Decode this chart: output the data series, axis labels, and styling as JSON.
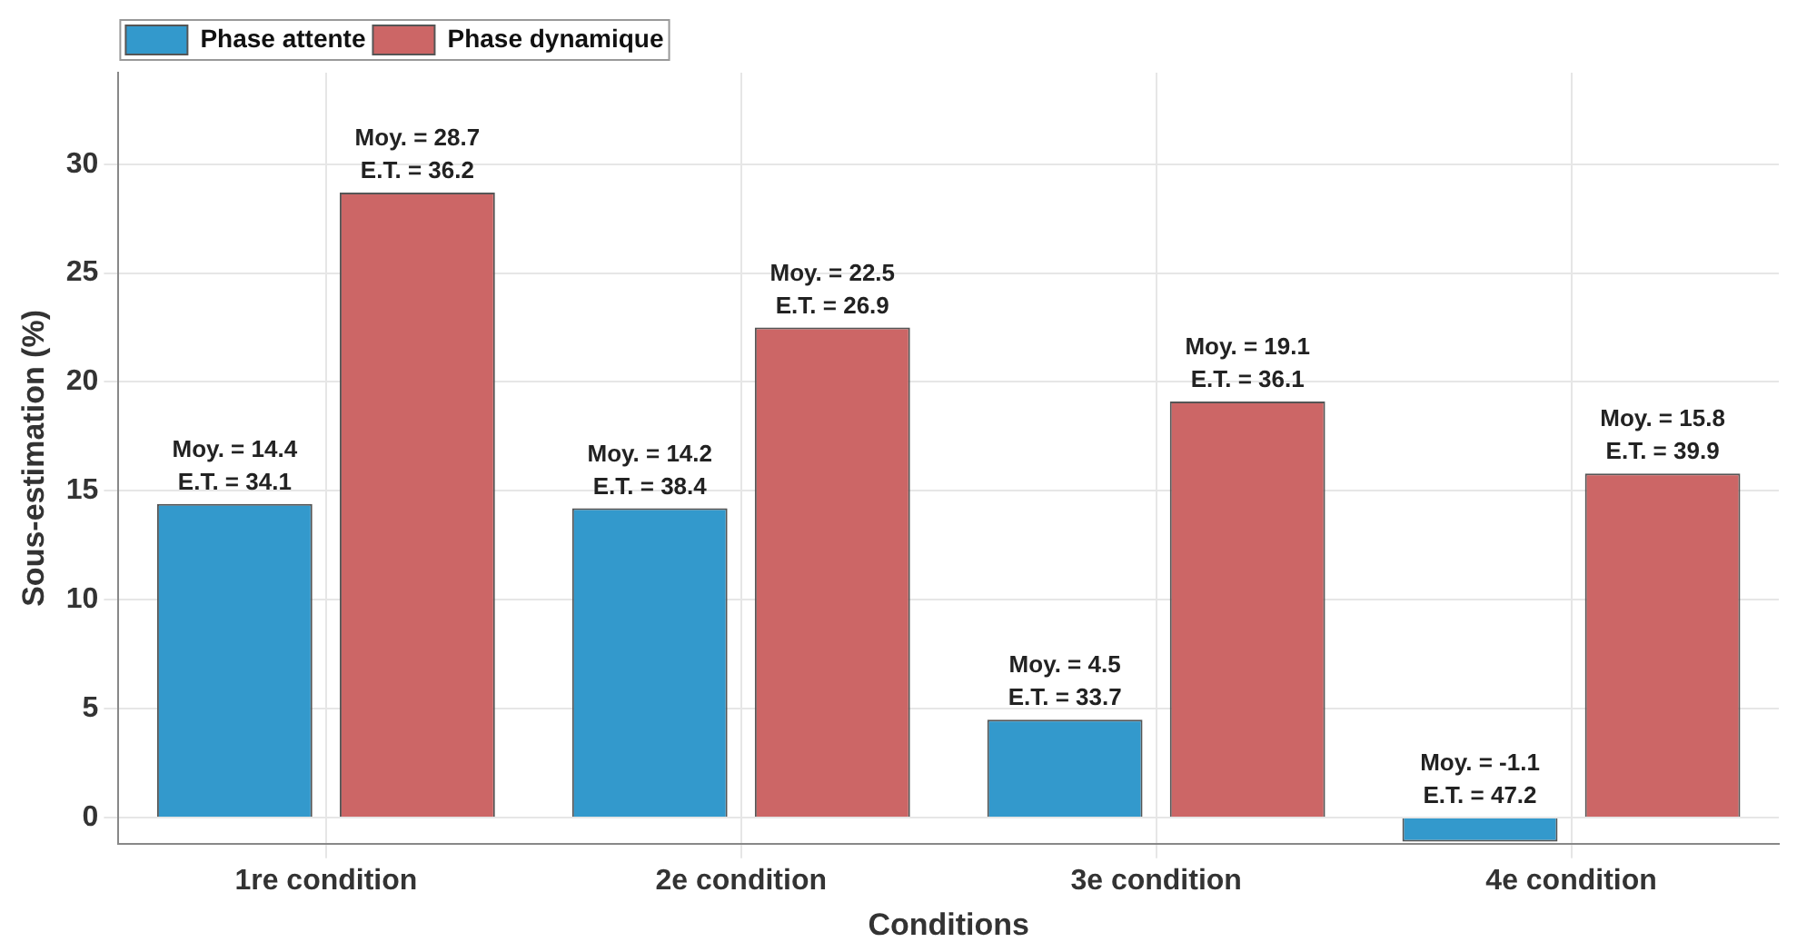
{
  "chart_data": {
    "type": "bar",
    "xlabel": "Conditions",
    "ylabel": "Sous-estimation (%)",
    "categories": [
      "1re condition",
      "2e condition",
      "3e condition",
      "4e condition"
    ],
    "series": [
      {
        "name": "Phase attente",
        "color": "#3399cc",
        "values": [
          14.4,
          14.2,
          4.5,
          -1.1
        ],
        "value_labels": [
          "Moy. = 14.4\nE.T. = 34.1",
          "Moy. = 14.2\nE.T. = 38.4",
          "Moy. = 4.5\nE.T. = 33.7",
          "Moy. = -1.1\nE.T. = 47.2"
        ]
      },
      {
        "name": "Phase dynamique",
        "color": "#cc6666",
        "values": [
          28.7,
          22.5,
          19.1,
          15.8
        ],
        "value_labels": [
          "Moy. = 28.7\nE.T. = 36.2",
          "Moy. = 22.5\nE.T. = 26.9",
          "Moy. = 19.1\nE.T. = 36.1",
          "Moy. = 15.8\nE.T. = 39.9"
        ]
      }
    ],
    "ylim": [
      -1.2,
      34.2
    ],
    "yticks": [
      0,
      5,
      10,
      15,
      20,
      25,
      30
    ],
    "grid": true,
    "legend": "top left"
  }
}
